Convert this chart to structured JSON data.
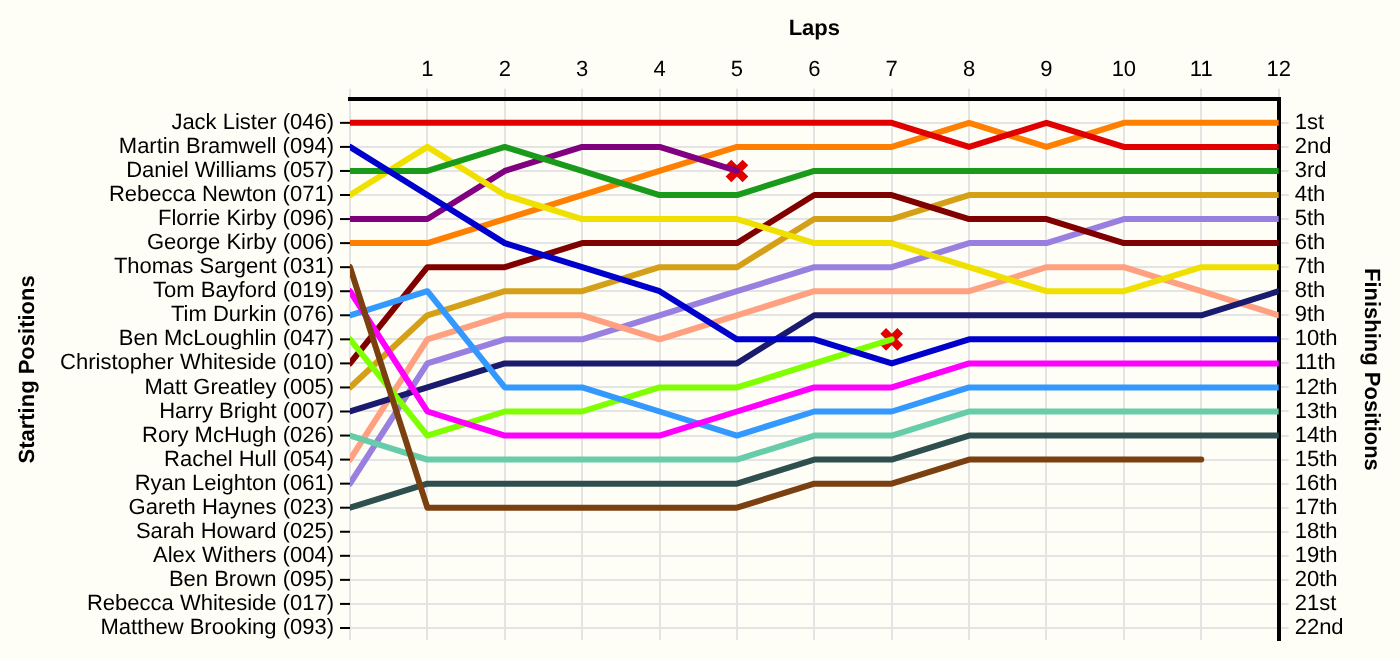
{
  "chart_data": {
    "type": "line",
    "xlabel": "Laps",
    "ylabel": "Finishing Positions",
    "x": [
      0,
      1,
      2,
      3,
      4,
      5,
      6,
      7,
      8,
      9,
      10,
      11,
      12
    ],
    "xlim": [
      0,
      12
    ],
    "xticks": [
      {
        "value": 0,
        "label": null
      },
      1,
      2,
      3,
      4,
      5,
      6,
      7,
      8,
      9,
      10,
      11,
      12
    ],
    "ylim": [
      22.5,
      0
    ],
    "yticks": [
      {
        "value": 1,
        "label": "1st"
      },
      {
        "value": 2,
        "label": "2nd"
      },
      {
        "value": 3,
        "label": "3rd"
      },
      {
        "value": 4,
        "label": "4th"
      },
      {
        "value": 5,
        "label": "5th"
      },
      {
        "value": 6,
        "label": "6th"
      },
      {
        "value": 7,
        "label": "7th"
      },
      {
        "value": 8,
        "label": "8th"
      },
      {
        "value": 9,
        "label": "9th"
      },
      {
        "value": 10,
        "label": "10th"
      },
      {
        "value": 11,
        "label": "11th"
      },
      {
        "value": 12,
        "label": "12th"
      },
      {
        "value": 13,
        "label": "13th"
      },
      {
        "value": 14,
        "label": "14th"
      },
      {
        "value": 15,
        "label": "15th"
      },
      {
        "value": 16,
        "label": "16th"
      },
      {
        "value": 17,
        "label": "17th"
      },
      {
        "value": 18,
        "label": "18th"
      },
      {
        "value": 19,
        "label": "19th"
      },
      {
        "value": 20,
        "label": "20th"
      },
      {
        "value": 21,
        "label": "21st"
      },
      {
        "value": 22,
        "label": "22nd"
      }
    ],
    "annotations": [
      "Starting Positions",
      "Jack Lister (046)",
      "Martin Bramwell (094)",
      "Daniel Williams (057)",
      "Rebecca Newton (071)",
      "Florrie Kirby (096)",
      "George Kirby (006)",
      "Thomas Sargent (031)",
      "Tom Bayford (019)",
      "Tim Durkin (076)",
      "Ben McLoughlin (047)",
      "Christopher Whiteside (010)",
      "Matt Greatley (005)",
      "Harry Bright (007)",
      "Rory McHugh (026)",
      "Rachel Hull (054)",
      "Ryan Leighton (061)",
      "Gareth Haynes (023)",
      "Sarah Howard (025)",
      "Alex Withers (004)",
      "Ben Brown (095)",
      "Rebecca Whiteside (017)",
      "Matthew Brooking (093)"
    ],
    "grid": true,
    "legend": false,
    "marker": "none",
    "line_style": "solid",
    "series": [
      {
        "color": "#e00000",
        "values": [
          1,
          1,
          1,
          1,
          1,
          1,
          1,
          1,
          2,
          1,
          2,
          2,
          2
        ]
      },
      {
        "color": "#0000cc",
        "values": [
          2,
          4,
          6,
          7,
          8,
          10,
          10,
          11,
          10,
          10,
          10,
          10,
          10
        ]
      },
      {
        "color": "#1a9a1a",
        "values": [
          3,
          3,
          2,
          3,
          4,
          4,
          3,
          3,
          3,
          3,
          3,
          3,
          3
        ]
      },
      {
        "color": "#f0e000",
        "values": [
          4,
          2,
          4,
          5,
          5,
          5,
          6,
          6,
          7,
          8,
          8,
          7,
          7
        ]
      },
      {
        "color": "#800080",
        "values": [
          5,
          5,
          3,
          2,
          2,
          3,
          null,
          null,
          null,
          null,
          null,
          null,
          null
        ]
      },
      {
        "color": "#ff8000",
        "values": [
          6,
          6,
          5,
          4,
          3,
          2,
          2,
          2,
          1,
          2,
          1,
          1,
          1
        ]
      },
      {
        "color": "#7a4010",
        "values": [
          7,
          17,
          17,
          17,
          17,
          17,
          16,
          16,
          15,
          15,
          15,
          15,
          null
        ]
      },
      {
        "color": "#ff00ff",
        "values": [
          8,
          13,
          14,
          14,
          14,
          13,
          12,
          12,
          11,
          11,
          11,
          11,
          11
        ]
      },
      {
        "color": "#3399ff",
        "values": [
          9,
          8,
          12,
          12,
          13,
          14,
          13,
          13,
          12,
          12,
          12,
          12,
          12
        ]
      },
      {
        "color": "#80ff00",
        "values": [
          10,
          14,
          13,
          13,
          12,
          12,
          11,
          10,
          null,
          null,
          null,
          null,
          null
        ]
      },
      {
        "color": "#800000",
        "values": [
          11,
          7,
          7,
          6,
          6,
          6,
          4,
          4,
          5,
          5,
          6,
          6,
          6
        ]
      },
      {
        "color": "#d4a017",
        "values": [
          12,
          9,
          8,
          8,
          7,
          7,
          5,
          5,
          4,
          4,
          4,
          4,
          4
        ]
      },
      {
        "color": "#1a1a6e",
        "values": [
          13,
          12,
          11,
          11,
          11,
          11,
          9,
          9,
          9,
          9,
          9,
          9,
          8
        ]
      },
      {
        "color": "#66ccaa",
        "values": [
          14,
          15,
          15,
          15,
          15,
          15,
          14,
          14,
          13,
          13,
          13,
          13,
          13
        ]
      },
      {
        "color": "#ffa080",
        "values": [
          15,
          10,
          9,
          9,
          10,
          9,
          8,
          8,
          8,
          7,
          7,
          8,
          9
        ]
      },
      {
        "color": "#9980e0",
        "values": [
          16,
          11,
          10,
          10,
          9,
          8,
          7,
          7,
          6,
          6,
          5,
          5,
          5
        ]
      },
      {
        "color": "#2f4f4f",
        "values": [
          17,
          16,
          16,
          16,
          16,
          16,
          15,
          15,
          14,
          14,
          14,
          14,
          14
        ]
      },
      {
        "type": "scatter",
        "marker": "cross",
        "color": "#e00000",
        "x": [
          5,
          7
        ],
        "values": [
          3,
          10
        ]
      }
    ]
  }
}
